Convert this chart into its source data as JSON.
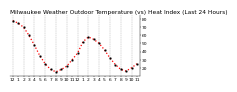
{
  "title": "Milwaukee Weather Outdoor Temperature (vs) Heat Index (Last 24 Hours)",
  "x_values": [
    0,
    1,
    2,
    3,
    4,
    5,
    6,
    7,
    8,
    9,
    10,
    11,
    12,
    13,
    14,
    15,
    16,
    17,
    18,
    19,
    20,
    21,
    22,
    23
  ],
  "y_values": [
    78,
    75,
    70,
    60,
    48,
    35,
    25,
    18,
    15,
    18,
    22,
    30,
    38,
    52,
    58,
    55,
    50,
    42,
    32,
    24,
    18,
    16,
    20,
    25
  ],
  "line_color": "#ff0000",
  "marker_color": "#000000",
  "background_color": "#ffffff",
  "grid_color": "#888888",
  "ylim": [
    10,
    85
  ],
  "ytick_vals": [
    20,
    30,
    40,
    50,
    60,
    70,
    80
  ],
  "ytick_labels": [
    "20",
    "30",
    "40",
    "50",
    "60",
    "70",
    "80"
  ],
  "xtick_positions": [
    0,
    1,
    2,
    3,
    4,
    5,
    6,
    7,
    8,
    9,
    10,
    11,
    12,
    13,
    14,
    15,
    16,
    17,
    18,
    19,
    20,
    21,
    22,
    23
  ],
  "xtick_labels": [
    "12",
    "1",
    "2",
    "3",
    "4",
    "5",
    "6",
    "7",
    "8",
    "9",
    "10",
    "11",
    "12",
    "1",
    "2",
    "3",
    "4",
    "5",
    "6",
    "7",
    "8",
    "9",
    "10",
    "11"
  ],
  "grid_positions": [
    0,
    2,
    4,
    6,
    8,
    10,
    12,
    14,
    16,
    18,
    20,
    22
  ],
  "title_fontsize": 4.2,
  "tick_fontsize": 3.2,
  "line_width": 0.9,
  "marker_size": 1.0
}
